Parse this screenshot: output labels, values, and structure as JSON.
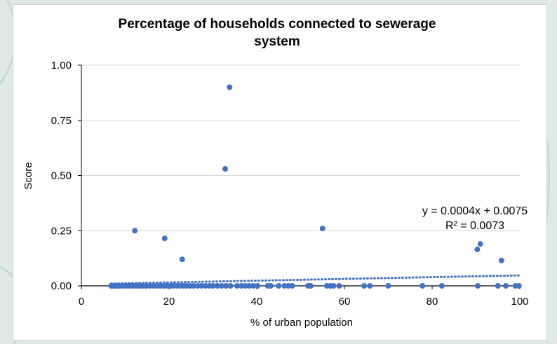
{
  "chart_data": {
    "type": "scatter",
    "title_lines": [
      "Percentage of households connected to sewerage",
      "system"
    ],
    "xlabel": "% of urban population",
    "ylabel": "Score",
    "xlim": [
      0,
      100
    ],
    "ylim": [
      0,
      1
    ],
    "x_ticks": [
      0,
      20,
      40,
      60,
      80,
      100
    ],
    "x_tick_labels": [
      "0",
      "20",
      "40",
      "60",
      "80",
      "100"
    ],
    "y_ticks": [
      0,
      0.25,
      0.5,
      0.75,
      1.0
    ],
    "y_tick_labels": [
      "0.00",
      "0.25",
      "0.50",
      "0.75",
      "1.00"
    ],
    "grid": "horizontal",
    "marker_color": "#4472c4",
    "trendline": {
      "slope": 0.0004,
      "intercept": 0.0075,
      "style": "dotted",
      "equation_label": "y = 0.0004x + 0.0075",
      "r2_label": "R² = 0.0073"
    },
    "points": [
      {
        "x": 12.2,
        "y": 0.25
      },
      {
        "x": 19.0,
        "y": 0.215
      },
      {
        "x": 23.0,
        "y": 0.12
      },
      {
        "x": 32.8,
        "y": 0.53
      },
      {
        "x": 33.8,
        "y": 0.9
      },
      {
        "x": 55.0,
        "y": 0.26
      },
      {
        "x": 90.3,
        "y": 0.165
      },
      {
        "x": 91.0,
        "y": 0.19
      },
      {
        "x": 95.8,
        "y": 0.115
      },
      {
        "x": 6.8,
        "y": 0
      },
      {
        "x": 7.2,
        "y": 0
      },
      {
        "x": 7.6,
        "y": 0
      },
      {
        "x": 8.1,
        "y": 0
      },
      {
        "x": 8.6,
        "y": 0
      },
      {
        "x": 9.3,
        "y": 0
      },
      {
        "x": 10.0,
        "y": 0
      },
      {
        "x": 10.6,
        "y": 0
      },
      {
        "x": 11.2,
        "y": 0
      },
      {
        "x": 11.8,
        "y": 0
      },
      {
        "x": 12.4,
        "y": 0
      },
      {
        "x": 13.0,
        "y": 0
      },
      {
        "x": 13.6,
        "y": 0
      },
      {
        "x": 14.2,
        "y": 0
      },
      {
        "x": 14.8,
        "y": 0
      },
      {
        "x": 15.6,
        "y": 0
      },
      {
        "x": 16.4,
        "y": 0
      },
      {
        "x": 17.2,
        "y": 0
      },
      {
        "x": 18.0,
        "y": 0
      },
      {
        "x": 18.8,
        "y": 0
      },
      {
        "x": 19.5,
        "y": 0
      },
      {
        "x": 20.3,
        "y": 0
      },
      {
        "x": 21.0,
        "y": 0
      },
      {
        "x": 21.8,
        "y": 0
      },
      {
        "x": 22.5,
        "y": 0
      },
      {
        "x": 23.3,
        "y": 0
      },
      {
        "x": 24.0,
        "y": 0
      },
      {
        "x": 24.8,
        "y": 0
      },
      {
        "x": 25.6,
        "y": 0
      },
      {
        "x": 26.5,
        "y": 0
      },
      {
        "x": 27.4,
        "y": 0
      },
      {
        "x": 28.3,
        "y": 0
      },
      {
        "x": 29.2,
        "y": 0
      },
      {
        "x": 30.0,
        "y": 0
      },
      {
        "x": 31.0,
        "y": 0
      },
      {
        "x": 32.0,
        "y": 0
      },
      {
        "x": 33.0,
        "y": 0
      },
      {
        "x": 34.0,
        "y": 0
      },
      {
        "x": 35.5,
        "y": 0
      },
      {
        "x": 36.5,
        "y": 0
      },
      {
        "x": 37.4,
        "y": 0
      },
      {
        "x": 38.3,
        "y": 0
      },
      {
        "x": 39.2,
        "y": 0
      },
      {
        "x": 40.2,
        "y": 0
      },
      {
        "x": 42.5,
        "y": 0
      },
      {
        "x": 43.2,
        "y": 0
      },
      {
        "x": 45.0,
        "y": 0
      },
      {
        "x": 46.3,
        "y": 0
      },
      {
        "x": 47.2,
        "y": 0
      },
      {
        "x": 48.1,
        "y": 0
      },
      {
        "x": 51.7,
        "y": 0
      },
      {
        "x": 52.3,
        "y": 0
      },
      {
        "x": 56.0,
        "y": 0
      },
      {
        "x": 56.8,
        "y": 0
      },
      {
        "x": 57.5,
        "y": 0
      },
      {
        "x": 58.8,
        "y": 0
      },
      {
        "x": 64.5,
        "y": 0
      },
      {
        "x": 65.8,
        "y": 0
      },
      {
        "x": 70.0,
        "y": 0
      },
      {
        "x": 77.8,
        "y": 0
      },
      {
        "x": 82.2,
        "y": 0
      },
      {
        "x": 90.4,
        "y": 0
      },
      {
        "x": 95.0,
        "y": 0
      },
      {
        "x": 96.8,
        "y": 0
      },
      {
        "x": 99.0,
        "y": 0
      },
      {
        "x": 99.8,
        "y": 0
      }
    ]
  }
}
